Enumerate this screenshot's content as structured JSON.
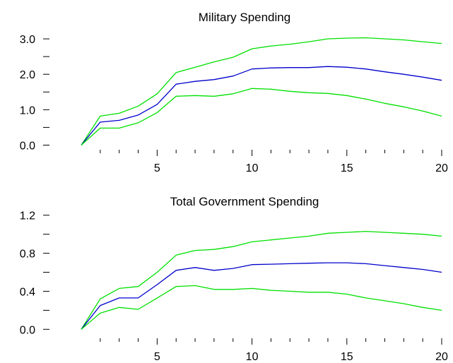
{
  "chart_data": [
    {
      "type": "line",
      "title": "Military Spending",
      "xlabel": "",
      "ylabel": "",
      "x": [
        1,
        2,
        3,
        4,
        5,
        6,
        7,
        8,
        9,
        10,
        11,
        12,
        13,
        14,
        15,
        16,
        17,
        18,
        19,
        20
      ],
      "xlim": [
        1,
        20
      ],
      "ylim": [
        -0.05,
        3.3
      ],
      "x_ticks_labeled": [
        "5",
        "10",
        "15",
        "20"
      ],
      "y_ticks_labeled": [
        "0.0",
        "1.0",
        "2.0",
        "3.0"
      ],
      "grid": false,
      "series": [
        {
          "role": "upper",
          "color": "#00e000",
          "values": [
            0.0,
            0.82,
            0.9,
            1.1,
            1.45,
            2.05,
            2.2,
            2.35,
            2.48,
            2.72,
            2.8,
            2.85,
            2.92,
            3.0,
            3.02,
            3.03,
            3.0,
            2.97,
            2.92,
            2.87
          ]
        },
        {
          "role": "center",
          "color": "#0000cc",
          "values": [
            0.0,
            0.65,
            0.7,
            0.85,
            1.15,
            1.72,
            1.8,
            1.85,
            1.95,
            2.15,
            2.18,
            2.19,
            2.19,
            2.22,
            2.2,
            2.15,
            2.07,
            2.0,
            1.92,
            1.83
          ]
        },
        {
          "role": "lower",
          "color": "#00e000",
          "values": [
            0.0,
            0.48,
            0.48,
            0.63,
            0.92,
            1.38,
            1.4,
            1.38,
            1.45,
            1.6,
            1.58,
            1.52,
            1.48,
            1.46,
            1.4,
            1.3,
            1.18,
            1.08,
            0.96,
            0.82
          ]
        }
      ]
    },
    {
      "type": "line",
      "title": "Total Government Spending",
      "xlabel": "",
      "ylabel": "",
      "x": [
        1,
        2,
        3,
        4,
        5,
        6,
        7,
        8,
        9,
        10,
        11,
        12,
        13,
        14,
        15,
        16,
        17,
        18,
        19,
        20
      ],
      "xlim": [
        1,
        20
      ],
      "ylim": [
        -0.02,
        1.25
      ],
      "x_ticks_labeled": [
        "5",
        "10",
        "15",
        "20"
      ],
      "y_ticks_labeled": [
        "0.0",
        "0.4",
        "0.8",
        "1.2"
      ],
      "grid": false,
      "series": [
        {
          "role": "upper",
          "color": "#00e000",
          "values": [
            0.0,
            0.32,
            0.43,
            0.45,
            0.6,
            0.78,
            0.83,
            0.84,
            0.87,
            0.92,
            0.94,
            0.96,
            0.98,
            1.01,
            1.02,
            1.03,
            1.02,
            1.01,
            1.0,
            0.98
          ]
        },
        {
          "role": "center",
          "color": "#0000cc",
          "values": [
            0.0,
            0.25,
            0.33,
            0.33,
            0.47,
            0.62,
            0.65,
            0.62,
            0.64,
            0.68,
            0.685,
            0.69,
            0.695,
            0.7,
            0.7,
            0.69,
            0.67,
            0.65,
            0.63,
            0.6
          ]
        },
        {
          "role": "lower",
          "color": "#00e000",
          "values": [
            0.0,
            0.17,
            0.23,
            0.21,
            0.33,
            0.45,
            0.46,
            0.42,
            0.42,
            0.43,
            0.41,
            0.4,
            0.39,
            0.39,
            0.37,
            0.33,
            0.3,
            0.27,
            0.23,
            0.2
          ]
        }
      ]
    }
  ]
}
